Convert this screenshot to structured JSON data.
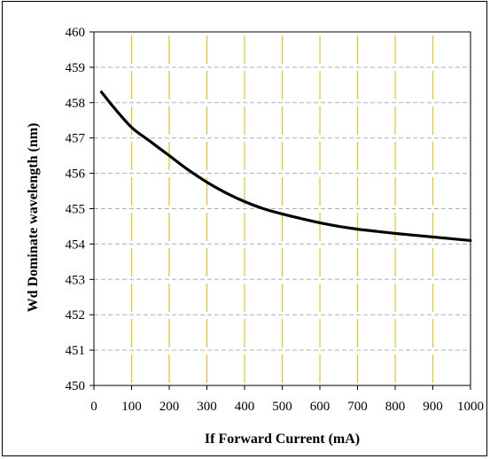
{
  "chart_data": {
    "type": "line",
    "xlabel": "If Forward Current (mA)",
    "ylabel": "Wd Dominate wavelength (nm)",
    "xlim": [
      0,
      1000
    ],
    "ylim": [
      450,
      460
    ],
    "x_ticks": [
      0,
      100,
      200,
      300,
      400,
      500,
      600,
      700,
      800,
      900,
      1000
    ],
    "y_ticks": [
      450,
      451,
      452,
      453,
      454,
      455,
      456,
      457,
      458,
      459,
      460
    ],
    "grid": {
      "vertical": true,
      "vertical_color": "#e8c21a",
      "horizontal": true,
      "horizontal_style": "dashed",
      "horizontal_color": "#b0b0b0"
    },
    "series": [
      {
        "color": "#000000",
        "x": [
          20,
          50,
          100,
          150,
          200,
          250,
          300,
          350,
          400,
          450,
          500,
          550,
          600,
          650,
          700,
          750,
          800,
          850,
          900,
          950,
          1000
        ],
        "y": [
          458.3,
          457.9,
          457.3,
          456.9,
          456.5,
          456.1,
          455.75,
          455.45,
          455.2,
          455.0,
          454.85,
          454.72,
          454.6,
          454.5,
          454.42,
          454.36,
          454.3,
          454.25,
          454.2,
          454.15,
          454.1
        ]
      }
    ]
  }
}
